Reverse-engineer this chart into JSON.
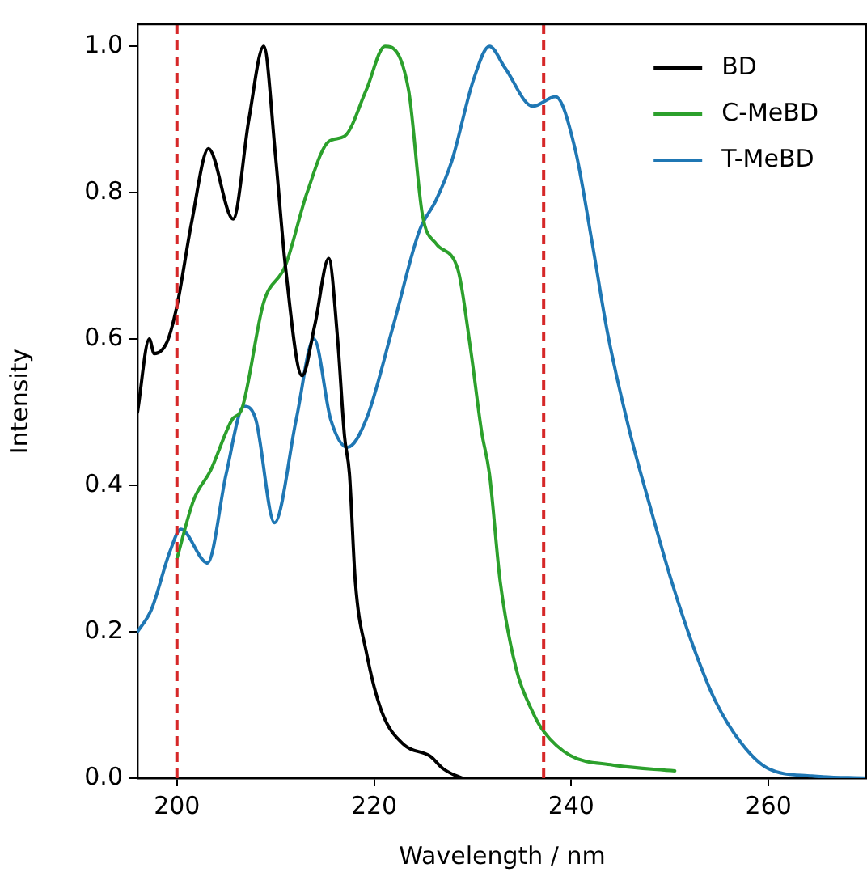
{
  "chart_data": {
    "type": "line",
    "xlabel": "Wavelength / nm",
    "ylabel": "Intensity",
    "xlim": [
      196,
      270
    ],
    "ylim": [
      0,
      1.03
    ],
    "xticks": [
      200,
      220,
      240,
      260
    ],
    "yticks": [
      {
        "value": 0,
        "label": "0.0"
      },
      {
        "value": 0.2,
        "label": "0.2"
      },
      {
        "value": 0.4,
        "label": "0.4"
      },
      {
        "value": 0.6,
        "label": "0.6"
      },
      {
        "value": 0.8,
        "label": "0.8"
      },
      {
        "value": 1.0,
        "label": "1.0"
      }
    ],
    "grid": false,
    "legend": "top right",
    "marker": "none",
    "line_style": "solid",
    "ref_lines": [
      {
        "axis": "x",
        "value": 200,
        "color": "#d62728",
        "line_style": "dashed"
      },
      {
        "axis": "x",
        "value": 237.2,
        "color": "#d62728",
        "line_style": "dashed"
      }
    ],
    "series": [
      {
        "name": "BD",
        "color": "#000000",
        "x": [
          196,
          197.2,
          197.7,
          199,
          200,
          201.5,
          203.2,
          205.7,
          207.3,
          208.8,
          210,
          211,
          212.7,
          214,
          215.4,
          216.3,
          217,
          217.5,
          218.1,
          219.2,
          220.8,
          223,
          225.7,
          227,
          228.2,
          229
        ],
        "values": [
          0.5,
          0.6,
          0.58,
          0.596,
          0.645,
          0.76,
          0.86,
          0.764,
          0.9,
          1.0,
          0.85,
          0.7,
          0.55,
          0.62,
          0.71,
          0.6,
          0.467,
          0.416,
          0.268,
          0.173,
          0.09,
          0.046,
          0.03,
          0.013,
          0.004,
          0
        ]
      },
      {
        "name": "C-MeBD",
        "color": "#2ca02c",
        "x": [
          200,
          201.7,
          203.4,
          205.6,
          206.6,
          208.8,
          211,
          213.2,
          215.4,
          217,
          219.2,
          221.1,
          223.5,
          224.9,
          226.3,
          228.5,
          229.8,
          230.9,
          231.7,
          232.8,
          234.4,
          236.1,
          237.2,
          239.9,
          244.2,
          250.5
        ],
        "values": [
          0.3,
          0.38,
          0.42,
          0.49,
          0.505,
          0.65,
          0.7,
          0.8,
          0.87,
          0.877,
          0.94,
          1.0,
          0.94,
          0.77,
          0.73,
          0.695,
          0.585,
          0.474,
          0.416,
          0.268,
          0.15,
          0.09,
          0.064,
          0.031,
          0.018,
          0.01
        ]
      },
      {
        "name": "T-MeBD",
        "color": "#1f77b4",
        "x": [
          196,
          197.4,
          199.3,
          200.4,
          203.1,
          205,
          206.8,
          208,
          209.9,
          212.1,
          213.9,
          215.6,
          217.3,
          219.2,
          221.9,
          224.6,
          226.3,
          227.9,
          230.1,
          231.7,
          233.3,
          236.1,
          238.4,
          240.4,
          242.1,
          243.7,
          245.9,
          248,
          250.2,
          252.4,
          254.6,
          257.3,
          260,
          264.4,
          270
        ],
        "values": [
          0.2,
          0.23,
          0.31,
          0.34,
          0.294,
          0.416,
          0.508,
          0.49,
          0.349,
          0.49,
          0.6,
          0.49,
          0.452,
          0.49,
          0.616,
          0.748,
          0.79,
          0.844,
          0.955,
          1.0,
          0.97,
          0.918,
          0.931,
          0.859,
          0.733,
          0.607,
          0.475,
          0.371,
          0.268,
          0.179,
          0.106,
          0.047,
          0.013,
          0.003,
          0
        ]
      }
    ]
  }
}
